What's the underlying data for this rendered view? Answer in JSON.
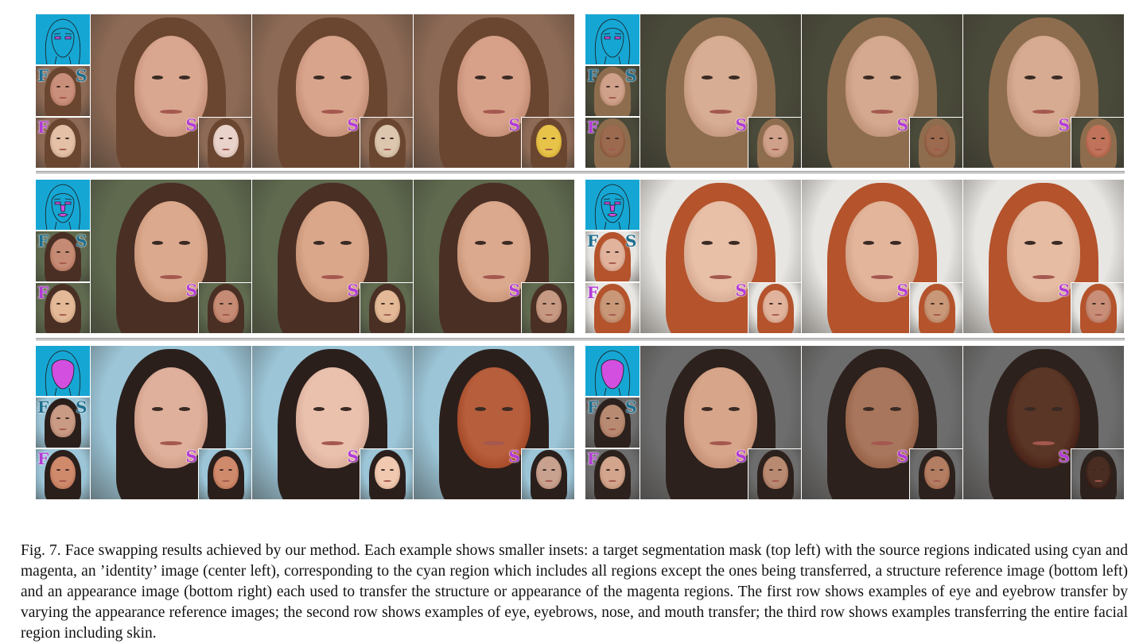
{
  "figure": {
    "rows": [
      {
        "examples": [
          {
            "side": "left",
            "colors": {
              "bg": "#8d6a55",
              "skin": "#d9a68f",
              "hair": "#6a4630",
              "id_skin": "#c98f7a",
              "st_skin": "#e3c0a6",
              "ap": [
                "#e9d2c9",
                "#dcc6ae",
                "#e8c34a"
              ]
            }
          },
          {
            "side": "right",
            "colors": {
              "bg": "#4a4a3a",
              "skin": "#d7ad93",
              "hair": "#8e6d4e",
              "id_skin": "#cfa18a",
              "st_skin": "#9c6a4f",
              "ap": [
                "#cfa18a",
                "#9c6a4f",
                "#c0735a"
              ]
            }
          }
        ]
      },
      {
        "examples": [
          {
            "side": "left",
            "colors": {
              "bg": "#5f6a4f",
              "skin": "#dba98d",
              "hair": "#4a2f24",
              "id_skin": "#c68b74",
              "st_skin": "#e3b997",
              "ap": [
                "#c68b74",
                "#e3b997",
                "#c79a83"
              ]
            }
          },
          {
            "side": "right",
            "colors": {
              "bg": "#e8e6e2",
              "skin": "#e8bfa7",
              "hair": "#b4532c",
              "id_skin": "#e2b39c",
              "st_skin": "#c99878",
              "ap": [
                "#e2b39c",
                "#c99878",
                "#c98e78"
              ]
            }
          }
        ]
      },
      {
        "examples": [
          {
            "side": "left",
            "colors": {
              "bg": "#9cc6d8",
              "skin": "#dfb09b",
              "hair": "#2b1f1c",
              "id_skin": "#c99a84",
              "st_skin": "#cf8a6c",
              "ap": [
                "#cf8a6c",
                "#f0c9b0",
                "#c9a18f"
              ]
            }
          },
          {
            "side": "right",
            "colors": {
              "bg": "#6d6d6d",
              "skin": "#d7a58a",
              "hair": "#2c211c",
              "id_skin": "#b98a72",
              "st_skin": "#d2a58c",
              "ap": [
                "#b98a72",
                "#b37d62",
                "#4a2d22"
              ]
            }
          }
        ]
      }
    ],
    "result_skin_variants": [
      [
        "#d9a68f",
        "#d8a48c",
        "#d7a189"
      ],
      [
        "#d7ad93",
        "#d4a98f",
        "#d6ab91"
      ],
      [
        "#dba98d",
        "#daa78a",
        "#dba98d"
      ],
      [
        "#e8bfa7",
        "#e3b59b",
        "#e6bca3"
      ],
      [
        "#dfb09b",
        "#eac1ad",
        "#b75e3c"
      ],
      [
        "#d7a58a",
        "#a8765c",
        "#5a3626"
      ]
    ],
    "letters": {
      "f": "F",
      "s": "S"
    }
  },
  "caption": {
    "text": "Fig. 7.  Face swapping results achieved by our method. Each example shows smaller insets: a target segmentation mask (top left) with the source regions indicated using cyan and magenta, an ’identity’ image (center left), corresponding to the cyan region which includes all regions except the ones being transferred, a structure reference image (bottom left) and an appearance image (bottom right) each used to transfer the structure or appearance of the magenta regions. The first row shows examples of eye and eyebrow transfer by varying the appearance reference images; the second row shows examples of eye, eyebrows, nose, and mouth transfer; the third row shows examples transferring the entire facial region including skin."
  }
}
